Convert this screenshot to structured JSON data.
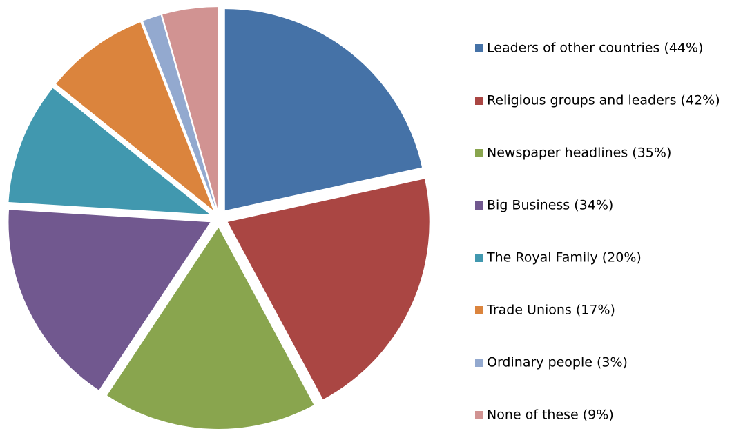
{
  "chart_data": {
    "type": "pie",
    "categories": [
      "Leaders of other countries (44%)",
      "Religious groups and leaders (42%)",
      "Newspaper headlines (35%)",
      "Big Business (34%)",
      "The Royal Family (20%)",
      "Trade Unions (17%)",
      "Ordinary people (3%)",
      "None of these (9%)"
    ],
    "values": [
      44,
      42,
      35,
      34,
      20,
      17,
      3,
      9
    ],
    "colors": [
      "#4572a7",
      "#aa4643",
      "#89a54e",
      "#71588f",
      "#4198af",
      "#db843d",
      "#93a9cf",
      "#d19392"
    ],
    "legend": "right"
  }
}
